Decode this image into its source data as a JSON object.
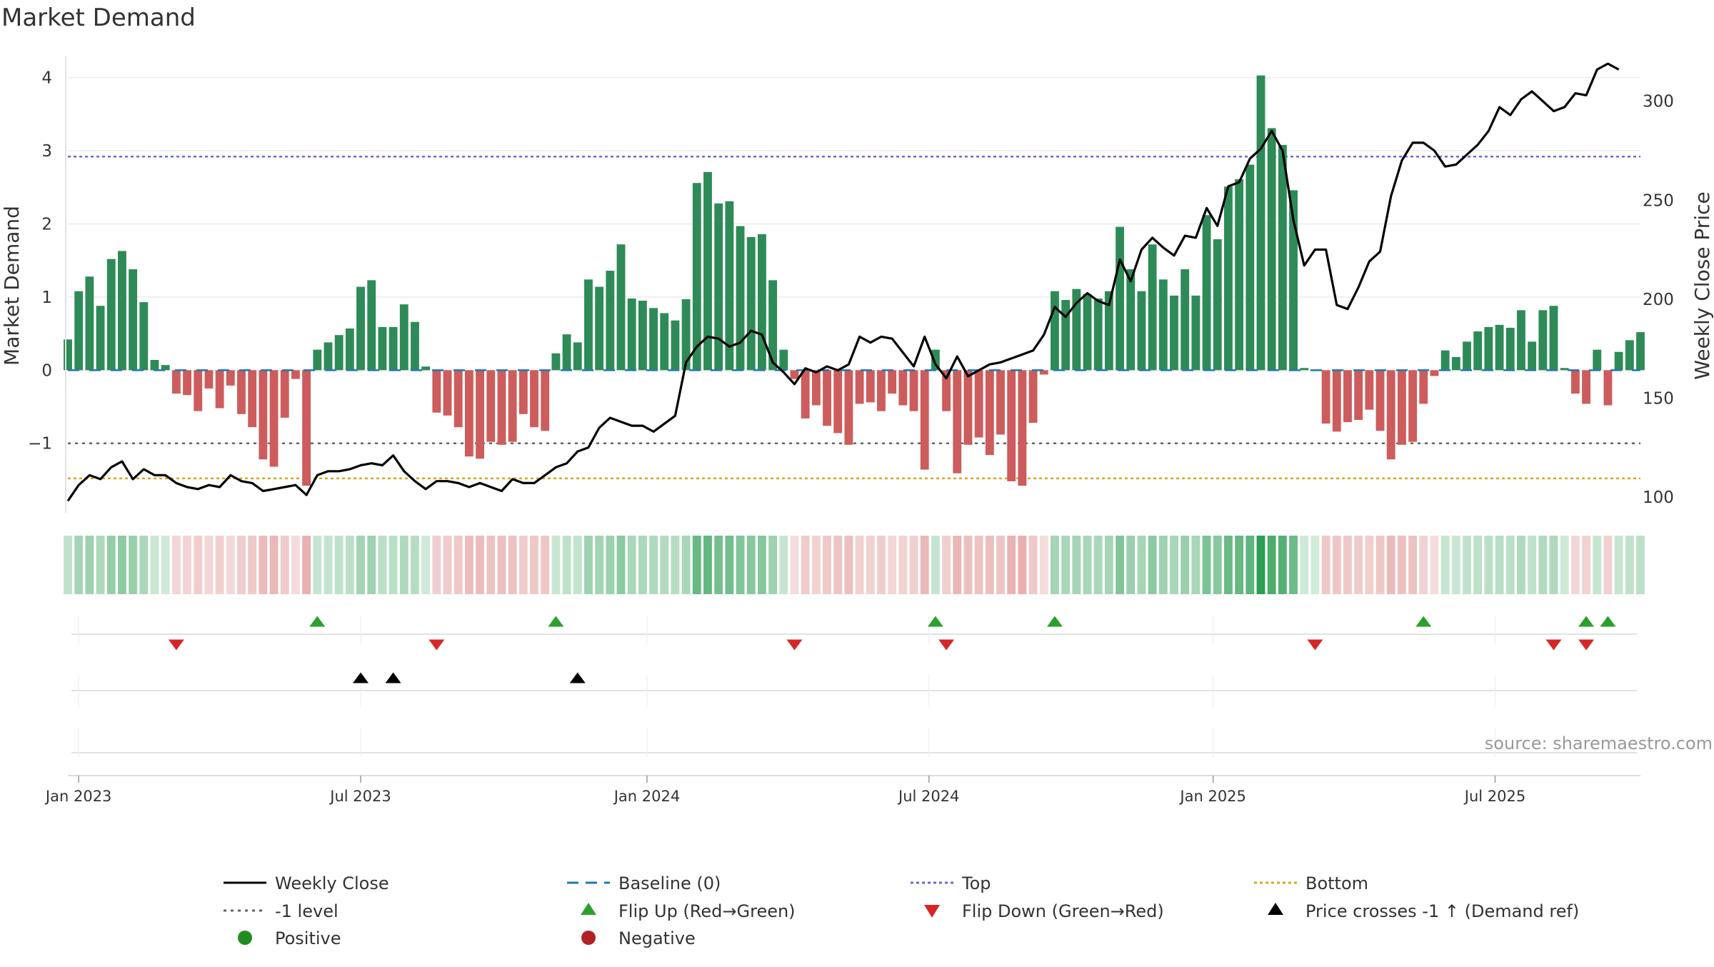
{
  "chart_data": {
    "type": "bar",
    "title": "Market Demand",
    "ylabel_left": "Market Demand",
    "ylabel_right": "Weekly Close Price",
    "source": "source: sharemaestro.com",
    "ylim_left": [
      -1.95,
      4.3
    ],
    "ylim_right": [
      92,
      323
    ],
    "yticks_left": [
      -1,
      0,
      1,
      2,
      3,
      4
    ],
    "yticks_left_labels": [
      "−1",
      "0",
      "1",
      "2",
      "3",
      "4"
    ],
    "yticks_right": [
      100,
      150,
      200,
      250,
      300
    ],
    "x_start_week": -1,
    "x_week_range": [
      -1,
      144
    ],
    "x_ticks": [
      {
        "label": "Jan 2023",
        "week": 0
      },
      {
        "label": "Jul 2023",
        "week": 26
      },
      {
        "label": "Jan 2024",
        "week": 52.4
      },
      {
        "label": "Jul 2024",
        "week": 78.4
      },
      {
        "label": "Jan 2025",
        "week": 104.6
      },
      {
        "label": "Jul 2025",
        "week": 130.6
      }
    ],
    "reference_lines": {
      "top": 2.92,
      "bottom": -1.48,
      "minus_one": -1,
      "baseline": 0
    },
    "colors": {
      "positive_bar": "#2e8b57",
      "negative_bar": "#cd5c5c",
      "weekly_close": "#000000",
      "baseline": "#1f77b4",
      "top": "#6a6adb",
      "bottom": "#daa520",
      "minus_one": "#666666",
      "flip_up": "#2ca02c",
      "flip_down": "#d62728",
      "price_cross": "#000000",
      "positive_dot": "#228b22",
      "negative_dot": "#b22222",
      "heat_pos": "#2e9e55",
      "heat_neg": "#d46a6a"
    },
    "series": [
      {
        "name": "Market Demand",
        "values": [
          0.42,
          1.08,
          1.28,
          0.88,
          1.52,
          1.63,
          1.38,
          0.93,
          0.14,
          0.07,
          -0.32,
          -0.34,
          -0.56,
          -0.25,
          -0.52,
          -0.21,
          -0.6,
          -0.78,
          -1.22,
          -1.32,
          -0.65,
          -0.12,
          -1.58,
          0.28,
          0.38,
          0.48,
          0.57,
          1.14,
          1.23,
          0.59,
          0.59,
          0.9,
          0.66,
          0.05,
          -0.58,
          -0.62,
          -0.78,
          -1.18,
          -1.21,
          -0.98,
          -1.02,
          -0.98,
          -0.6,
          -0.78,
          -0.83,
          0.23,
          0.49,
          0.38,
          1.24,
          1.14,
          1.36,
          1.72,
          0.98,
          0.95,
          0.85,
          0.78,
          0.68,
          0.97,
          2.56,
          2.71,
          2.28,
          2.31,
          1.97,
          1.82,
          1.86,
          1.23,
          0.28,
          -0.12,
          -0.66,
          -0.48,
          -0.76,
          -0.86,
          -1.02,
          -0.46,
          -0.44,
          -0.56,
          -0.32,
          -0.48,
          -0.56,
          -1.36,
          0.28,
          -0.56,
          -1.41,
          -1.02,
          -0.92,
          -1.16,
          -0.88,
          -1.52,
          -1.58,
          -0.72,
          -0.06,
          1.08,
          0.96,
          1.11,
          1.04,
          0.98,
          1.08,
          1.96,
          1.38,
          1.08,
          1.72,
          1.24,
          1.02,
          1.38,
          1.02,
          2.12,
          1.79,
          2.51,
          2.61,
          2.81,
          4.03,
          3.31,
          3.08,
          2.46,
          0.03,
          0,
          -0.73,
          -0.84,
          -0.71,
          -0.68,
          -0.54,
          -0.83,
          -1.22,
          -1.02,
          -0.98,
          -0.46,
          -0.08,
          0.27,
          0.18,
          0.39,
          0.53,
          0.59,
          0.62,
          0.58,
          0.82,
          0.39,
          0.82,
          0.88,
          0.03,
          -0.32,
          -0.46,
          0.28,
          -0.48,
          0.25,
          0.41,
          0.52
        ]
      },
      {
        "name": "Weekly Close",
        "values": [
          98,
          106,
          111,
          109,
          115,
          118,
          109,
          114,
          111,
          111,
          107,
          105,
          104,
          106,
          105,
          111,
          108,
          107,
          103,
          104,
          105,
          106,
          101,
          111,
          113,
          113,
          114,
          116,
          117,
          116,
          121,
          113,
          108,
          104,
          108,
          108,
          107,
          105,
          107,
          105,
          103,
          109,
          107,
          107,
          111,
          115,
          117,
          123,
          125,
          135,
          140,
          138,
          136,
          136,
          133,
          137,
          141,
          168,
          176,
          181,
          180,
          176,
          178,
          184,
          182,
          168,
          163,
          157,
          165,
          163,
          166,
          164,
          167,
          181,
          178,
          181,
          180,
          173,
          166,
          181,
          167,
          160,
          171,
          161,
          164,
          167,
          168,
          170,
          172,
          174,
          182,
          196,
          191,
          198,
          203,
          199,
          197,
          220,
          209,
          225,
          231,
          226,
          222,
          232,
          231,
          246,
          237,
          257,
          259,
          271,
          276,
          285,
          275,
          240,
          217,
          225,
          225,
          197,
          195,
          206,
          219,
          224,
          252,
          270,
          279,
          279,
          275,
          267,
          268,
          273,
          278,
          285,
          297,
          293,
          301,
          305,
          300,
          295,
          297,
          304,
          303,
          316,
          319,
          316
        ]
      }
    ],
    "markers": {
      "flip_up_weeks": [
        22,
        44,
        79,
        90,
        124,
        139,
        141
      ],
      "flip_down_weeks": [
        9,
        33,
        66,
        80,
        114,
        136,
        139
      ],
      "price_cross_weeks": [
        26,
        29,
        46
      ]
    },
    "legend": {
      "weekly_close": "Weekly Close",
      "baseline": "Baseline (0)",
      "top": "Top",
      "bottom": "Bottom",
      "minus_one": "-1 level",
      "flip_up": "Flip Up (Red→Green)",
      "flip_down": "Flip Down (Green→Red)",
      "price_cross": "Price crosses -1 ↑ (Demand ref)",
      "positive": "Positive",
      "negative": "Negative"
    }
  }
}
